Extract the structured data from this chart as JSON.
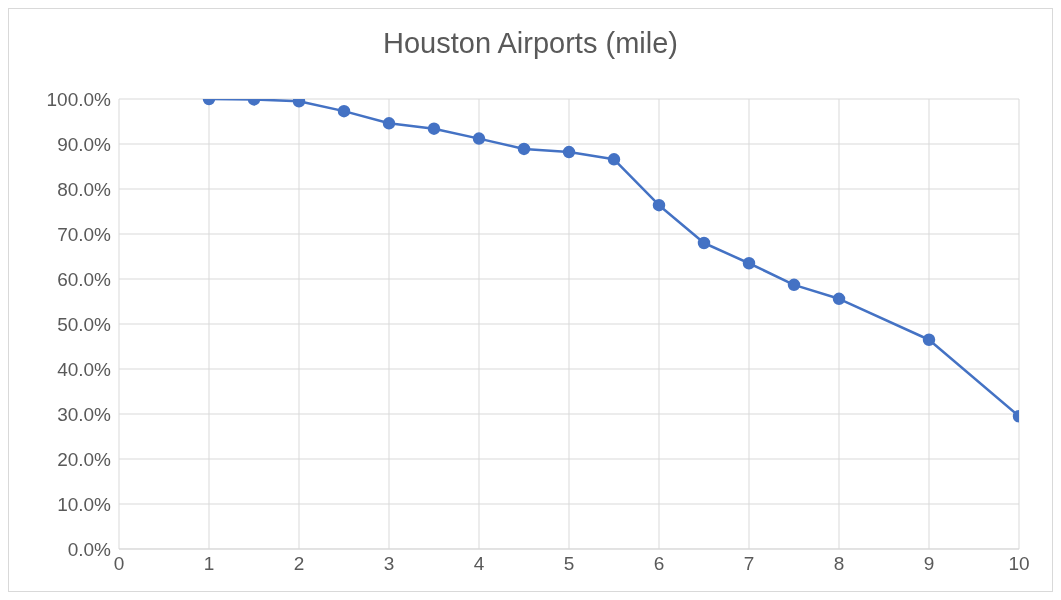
{
  "chart_data": {
    "type": "line",
    "title": "Houston Airports (mile)",
    "x": [
      1,
      1.5,
      2,
      2.5,
      3,
      3.5,
      4,
      4.5,
      5,
      5.5,
      6,
      6.5,
      7,
      7.5,
      8,
      9,
      10
    ],
    "series": [
      {
        "color": "#4472c4",
        "values": [
          100.0,
          99.9,
          99.5,
          97.3,
          94.6,
          93.4,
          91.2,
          88.9,
          88.2,
          86.6,
          76.4,
          68.0,
          63.5,
          58.7,
          55.6,
          46.5,
          29.5
        ]
      }
    ],
    "xlim": [
      0,
      10
    ],
    "xticks": [
      0,
      1,
      2,
      3,
      4,
      5,
      6,
      7,
      8,
      9,
      10
    ],
    "ylim": [
      0,
      100
    ],
    "yticks": [
      {
        "value": 0,
        "label": "0.0%"
      },
      {
        "value": 10,
        "label": "10.0%"
      },
      {
        "value": 20,
        "label": "20.0%"
      },
      {
        "value": 30,
        "label": "30.0%"
      },
      {
        "value": 40,
        "label": "40.0%"
      },
      {
        "value": 50,
        "label": "50.0%"
      },
      {
        "value": 60,
        "label": "60.0%"
      },
      {
        "value": 70,
        "label": "70.0%"
      },
      {
        "value": 80,
        "label": "80.0%"
      },
      {
        "value": 90,
        "label": "90.0%"
      },
      {
        "value": 100,
        "label": "100.0%"
      }
    ],
    "grid": true,
    "marker": "circle",
    "line_style": "solid"
  }
}
